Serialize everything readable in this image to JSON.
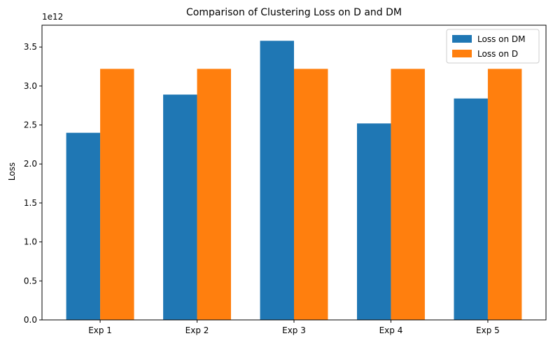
{
  "chart_data": {
    "type": "bar",
    "title": "Comparison of Clustering Loss on D and DM",
    "xlabel": "",
    "ylabel": "Loss",
    "y_scale_label": "1e12",
    "categories": [
      "Exp 1",
      "Exp 2",
      "Exp 3",
      "Exp 4",
      "Exp 5"
    ],
    "series": [
      {
        "name": "Loss on DM",
        "color": "#1f77b4",
        "values": [
          2.4,
          2.89,
          3.58,
          2.52,
          2.84
        ]
      },
      {
        "name": "Loss on D",
        "color": "#ff7f0e",
        "values": [
          3.22,
          3.22,
          3.22,
          3.22,
          3.22
        ]
      }
    ],
    "ylim": [
      0,
      3.78
    ],
    "yticks": [
      "0.0",
      "0.5",
      "1.0",
      "1.5",
      "2.0",
      "2.5",
      "3.0",
      "3.5"
    ],
    "grid": false,
    "legend_position": "top-right"
  }
}
